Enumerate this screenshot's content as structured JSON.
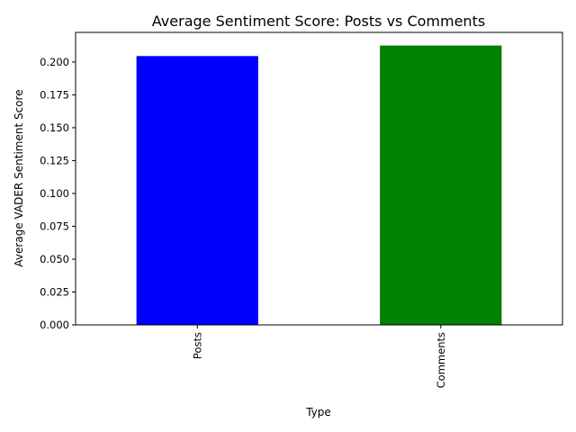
{
  "chart_data": {
    "type": "bar",
    "title": "Average Sentiment Score: Posts vs Comments",
    "xlabel": "Type",
    "ylabel": "Average VADER Sentiment Score",
    "categories": [
      "Posts",
      "Comments"
    ],
    "values": [
      0.2045,
      0.2125
    ],
    "bar_colors": [
      "#0000ff",
      "#008000"
    ],
    "ylim": [
      0,
      0.2225
    ],
    "yticks": [
      0.0,
      0.025,
      0.05,
      0.075,
      0.1,
      0.125,
      0.15,
      0.175,
      0.2
    ],
    "ytick_labels": [
      "0.000",
      "0.025",
      "0.050",
      "0.075",
      "0.100",
      "0.125",
      "0.150",
      "0.175",
      "0.200"
    ],
    "xtick_rotation": "vertical",
    "grid": false,
    "legend": "none"
  }
}
